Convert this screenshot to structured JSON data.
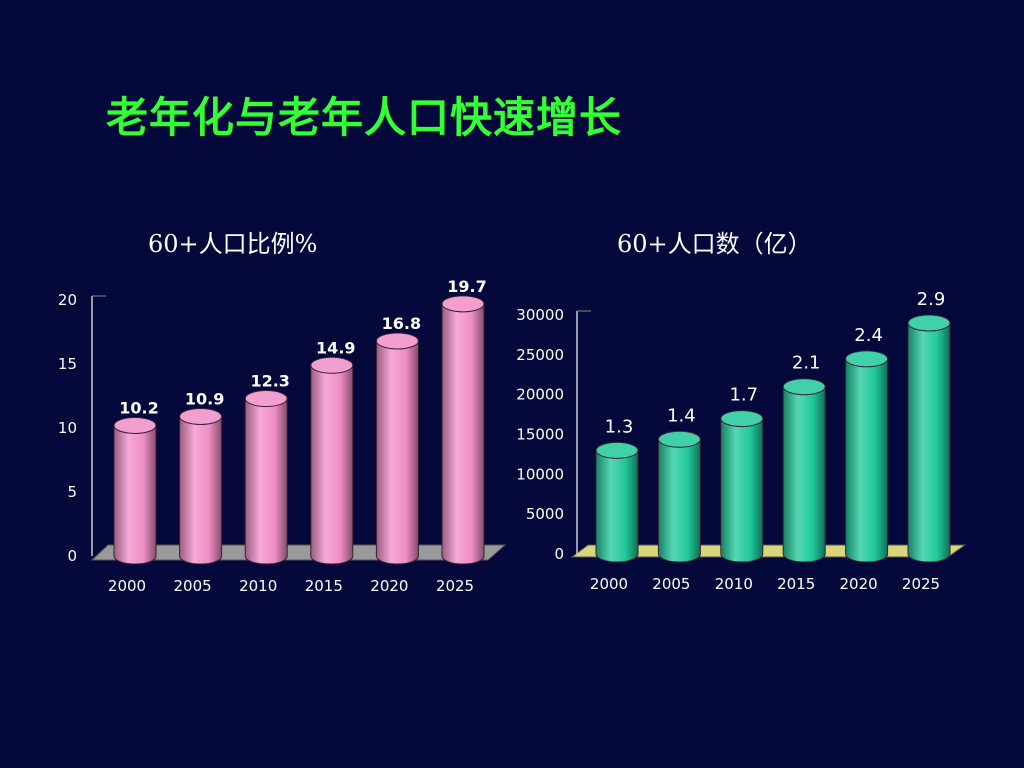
{
  "slide": {
    "title": "老年化与老年人口快速增长"
  },
  "colors": {
    "background": "#05083a",
    "title": "#33ff33",
    "pink_bar": "#f08ec6",
    "green_bar": "#1fc99a"
  },
  "chart_data": [
    {
      "type": "bar",
      "title": "60+人口比例%",
      "categories": [
        "2000",
        "2005",
        "2010",
        "2015",
        "2020",
        "2025"
      ],
      "values": [
        10.2,
        10.9,
        12.3,
        14.9,
        16.8,
        19.7
      ],
      "data_labels": [
        "10.2",
        "10.9",
        "12.3",
        "14.9",
        "16.8",
        "19.7"
      ],
      "ylim": [
        0,
        20
      ],
      "yticks": [
        "0",
        "5",
        "10",
        "15",
        "20"
      ],
      "ytick_values": [
        0,
        5,
        10,
        15,
        20
      ],
      "style": "3d-cylinder",
      "bar_color": "#f08ec6"
    },
    {
      "type": "bar",
      "title": "60+人口数（亿）",
      "categories": [
        "2000",
        "2005",
        "2010",
        "2015",
        "2020",
        "2025"
      ],
      "values": [
        13000,
        14400,
        17000,
        21000,
        24500,
        29000
      ],
      "data_labels": [
        "1.3",
        "1.4",
        "1.7",
        "2.1",
        "2.4",
        "2.9"
      ],
      "ylim": [
        0,
        30000
      ],
      "yticks": [
        "0",
        "5000",
        "10000",
        "15000",
        "20000",
        "25000",
        "30000"
      ],
      "ytick_values": [
        0,
        5000,
        10000,
        15000,
        20000,
        25000,
        30000
      ],
      "style": "3d-cylinder",
      "bar_color": "#1fc99a"
    }
  ]
}
